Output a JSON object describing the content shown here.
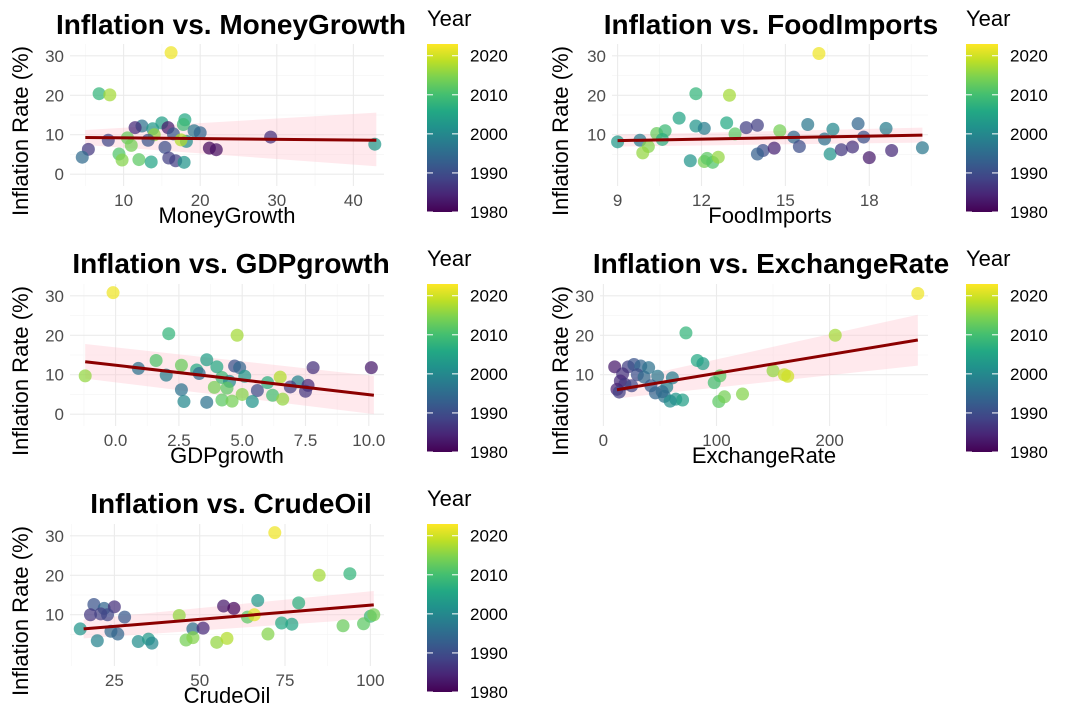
{
  "colors": {
    "point_palette": "viridis",
    "trend_line": "#8b0000",
    "confidence_band": "#ffc0cb"
  },
  "chart_data": [
    {
      "type": "scatter",
      "title": "Inflation vs. MoneyGrowth",
      "xlabel": "MoneyGrowth",
      "ylabel": "Inflation Rate (%)",
      "xlim": [
        3,
        44
      ],
      "ylim": [
        -3,
        33
      ],
      "xticks": [
        10,
        20,
        30,
        40
      ],
      "yticks": [
        0,
        10,
        20,
        30
      ],
      "legend": {
        "title": "Year",
        "ticks": [
          1980,
          1990,
          2000,
          2010,
          2020
        ],
        "range": [
          1980,
          2023
        ],
        "placement": "right"
      },
      "trend": {
        "x": [
          5,
          43
        ],
        "y": [
          9.3,
          8.6
        ],
        "band_low": [
          7.4,
          2.0
        ],
        "band_high": [
          11.2,
          15.6
        ]
      },
      "points": [
        [
          16.2,
          30.8,
          2022
        ],
        [
          6.8,
          20.4,
          2008
        ],
        [
          8.2,
          20.1,
          2017
        ],
        [
          18.0,
          13.8,
          2006
        ],
        [
          17.8,
          12.6,
          2009
        ],
        [
          15.0,
          13.0,
          2004
        ],
        [
          12.4,
          12.2,
          1996
        ],
        [
          11.5,
          11.8,
          1985
        ],
        [
          13.8,
          11.5,
          2003
        ],
        [
          15.8,
          11.8,
          1983
        ],
        [
          19.2,
          11.0,
          1997
        ],
        [
          20.0,
          10.5,
          1994
        ],
        [
          16.5,
          10.2,
          1992
        ],
        [
          14.0,
          10.0,
          2016
        ],
        [
          10.5,
          9.2,
          2013
        ],
        [
          8.0,
          8.6,
          1989
        ],
        [
          13.2,
          8.6,
          1991
        ],
        [
          18.2,
          8.3,
          2001
        ],
        [
          17.5,
          8.7,
          2018
        ],
        [
          29.2,
          9.4,
          1986
        ],
        [
          42.8,
          7.6,
          2003
        ],
        [
          5.4,
          6.3,
          1987
        ],
        [
          21.2,
          6.6,
          1981
        ],
        [
          22.1,
          6.2,
          1982
        ],
        [
          11.0,
          7.3,
          2014
        ],
        [
          15.4,
          6.8,
          1990
        ],
        [
          4.6,
          4.3,
          1995
        ],
        [
          9.4,
          5.1,
          2011
        ],
        [
          9.8,
          3.6,
          2015
        ],
        [
          12.0,
          3.7,
          2012
        ],
        [
          13.6,
          3.1,
          2005
        ],
        [
          15.9,
          4.1,
          1988
        ],
        [
          16.8,
          3.4,
          1988
        ],
        [
          17.9,
          3.0,
          2002
        ]
      ]
    },
    {
      "type": "scatter",
      "title": "Inflation vs. FoodImports",
      "xlabel": "FoodImports",
      "ylabel": "Inflation Rate (%)",
      "xlim": [
        8.8,
        20.1
      ],
      "ylim": [
        -3,
        33
      ],
      "xticks": [
        9,
        12,
        15,
        18
      ],
      "yticks": [
        10,
        20,
        30
      ],
      "legend": {
        "title": "Year",
        "ticks": [
          1980,
          1990,
          2000,
          2010,
          2020
        ],
        "range": [
          1980,
          2023
        ],
        "placement": "right"
      },
      "trend": {
        "x": [
          9,
          19.9
        ],
        "y": [
          8.5,
          9.9
        ],
        "band_low": [
          7.0,
          8.0
        ],
        "band_high": [
          10.0,
          11.8
        ]
      },
      "points": [
        [
          16.2,
          30.6,
          2022
        ],
        [
          11.8,
          20.4,
          2008
        ],
        [
          13.0,
          20.0,
          2017
        ],
        [
          11.2,
          14.2,
          2005
        ],
        [
          12.9,
          13.0,
          2006
        ],
        [
          11.8,
          12.2,
          2002
        ],
        [
          14.0,
          12.4,
          1988
        ],
        [
          15.8,
          12.6,
          1997
        ],
        [
          17.6,
          12.8,
          1994
        ],
        [
          13.6,
          11.8,
          1988
        ],
        [
          16.7,
          11.4,
          2000
        ],
        [
          18.6,
          11.6,
          1998
        ],
        [
          12.1,
          11.6,
          1998
        ],
        [
          14.8,
          11.0,
          2014
        ],
        [
          10.4,
          10.3,
          2013
        ],
        [
          10.7,
          11.0,
          2009
        ],
        [
          13.2,
          10.2,
          2012
        ],
        [
          15.3,
          9.4,
          1995
        ],
        [
          16.4,
          8.9,
          1996
        ],
        [
          17.8,
          9.4,
          1991
        ],
        [
          9.0,
          8.2,
          2003
        ],
        [
          9.8,
          8.6,
          1998
        ],
        [
          10.1,
          7.0,
          2015
        ],
        [
          14.2,
          6.0,
          1990
        ],
        [
          14.6,
          6.6,
          1984
        ],
        [
          15.5,
          7.0,
          1990
        ],
        [
          16.6,
          5.1,
          2002
        ],
        [
          17.0,
          6.2,
          1987
        ],
        [
          17.4,
          6.9,
          1986
        ],
        [
          18.8,
          6.0,
          1985
        ],
        [
          19.9,
          6.7,
          1997
        ],
        [
          9.9,
          5.4,
          2016
        ],
        [
          11.6,
          3.4,
          2002
        ],
        [
          12.1,
          3.2,
          2014
        ],
        [
          12.4,
          3.0,
          2011
        ],
        [
          12.2,
          4.0,
          2012
        ],
        [
          12.6,
          4.3,
          2016
        ],
        [
          14.0,
          5.1,
          1993
        ],
        [
          18.0,
          4.2,
          1983
        ],
        [
          10.6,
          8.8,
          2007
        ]
      ]
    },
    {
      "type": "scatter",
      "title": "Inflation vs. GDPgrowth",
      "xlabel": "GDPgrowth",
      "ylabel": "Inflation Rate (%)",
      "xlim": [
        -1.8,
        10.6
      ],
      "ylim": [
        -3,
        33
      ],
      "xticks": [
        0.0,
        2.5,
        5.0,
        7.5,
        10.0
      ],
      "yticks": [
        0,
        10,
        20,
        30
      ],
      "legend": {
        "title": "Year",
        "ticks": [
          1980,
          1990,
          2000,
          2010,
          2020
        ],
        "range": [
          1980,
          2023
        ],
        "placement": "right"
      },
      "trend": {
        "x": [
          -1.2,
          10.2
        ],
        "y": [
          13.3,
          4.8
        ],
        "band_low": [
          9.0,
          0.0
        ],
        "band_high": [
          17.8,
          9.7
        ]
      },
      "points": [
        [
          -0.1,
          30.8,
          2022
        ],
        [
          2.1,
          20.4,
          2008
        ],
        [
          4.8,
          20.0,
          2017
        ],
        [
          -1.2,
          9.7,
          2016
        ],
        [
          0.9,
          11.6,
          1996
        ],
        [
          1.6,
          13.6,
          2011
        ],
        [
          2.6,
          12.4,
          2013
        ],
        [
          3.2,
          11.2,
          2006
        ],
        [
          3.6,
          13.8,
          2004
        ],
        [
          4.0,
          12.0,
          2006
        ],
        [
          4.7,
          12.2,
          1991
        ],
        [
          4.9,
          11.8,
          1994
        ],
        [
          2.0,
          9.9,
          1998
        ],
        [
          3.3,
          10.3,
          1995
        ],
        [
          4.2,
          9.3,
          2009
        ],
        [
          4.5,
          8.3,
          2000
        ],
        [
          5.1,
          9.6,
          2003
        ],
        [
          6.0,
          8.0,
          2007
        ],
        [
          6.5,
          9.4,
          2018
        ],
        [
          7.2,
          8.2,
          1999
        ],
        [
          7.8,
          11.8,
          1986
        ],
        [
          10.1,
          11.8,
          1983
        ],
        [
          2.6,
          6.2,
          1996
        ],
        [
          3.9,
          6.8,
          2014
        ],
        [
          4.4,
          6.6,
          2012
        ],
        [
          5.6,
          6.0,
          1990
        ],
        [
          6.9,
          6.9,
          1988
        ],
        [
          7.6,
          7.3,
          1985
        ],
        [
          5.0,
          5.0,
          2015
        ],
        [
          6.2,
          4.8,
          2010
        ],
        [
          2.7,
          3.2,
          2000
        ],
        [
          3.6,
          3.0,
          1996
        ],
        [
          4.2,
          3.6,
          2012
        ],
        [
          4.6,
          3.3,
          2014
        ],
        [
          5.4,
          3.2,
          2002
        ],
        [
          6.6,
          3.8,
          2016
        ],
        [
          7.5,
          5.8,
          1987
        ]
      ]
    },
    {
      "type": "scatter",
      "title": "Inflation vs. ExchangeRate",
      "xlabel": "ExchangeRate",
      "ylabel": "Inflation Rate (%)",
      "xlim": [
        -3,
        287
      ],
      "ylim": [
        -3,
        33
      ],
      "xticks": [
        0,
        100,
        200
      ],
      "yticks": [
        10,
        20,
        30
      ],
      "legend": {
        "title": "Year",
        "ticks": [
          1980,
          1990,
          2000,
          2010,
          2020
        ],
        "range": [
          1980,
          2023
        ],
        "placement": "right"
      },
      "trend": {
        "x": [
          12,
          278
        ],
        "y": [
          6.2,
          18.8
        ],
        "band_low": [
          4.0,
          12.3
        ],
        "band_high": [
          8.3,
          25.2
        ]
      },
      "points": [
        [
          278,
          30.6,
          2022
        ],
        [
          205,
          20.0,
          2017
        ],
        [
          73,
          20.6,
          2008
        ],
        [
          10,
          12.0,
          1983
        ],
        [
          22,
          12.0,
          1988
        ],
        [
          27,
          12.6,
          1991
        ],
        [
          33,
          12.2,
          1994
        ],
        [
          40,
          11.8,
          1996
        ],
        [
          83,
          13.6,
          2006
        ],
        [
          88,
          12.8,
          2004
        ],
        [
          17,
          10.2,
          1986
        ],
        [
          30,
          10.0,
          1990
        ],
        [
          36,
          9.4,
          1995
        ],
        [
          48,
          9.6,
          1997
        ],
        [
          61,
          9.2,
          1998
        ],
        [
          103,
          9.7,
          2012
        ],
        [
          15,
          8.4,
          1985
        ],
        [
          19,
          7.6,
          1987
        ],
        [
          25,
          7.2,
          1989
        ],
        [
          42,
          7.2,
          1993
        ],
        [
          56,
          6.9,
          1999
        ],
        [
          98,
          8.0,
          2010
        ],
        [
          12,
          6.3,
          1984
        ],
        [
          14,
          5.6,
          1988
        ],
        [
          46,
          5.4,
          1994
        ],
        [
          54,
          4.5,
          1996
        ],
        [
          64,
          3.8,
          2002
        ],
        [
          70,
          3.6,
          2004
        ],
        [
          102,
          3.2,
          2012
        ],
        [
          107,
          4.4,
          2014
        ],
        [
          123,
          5.1,
          2015
        ],
        [
          150,
          11.0,
          2016
        ],
        [
          160,
          10.0,
          2019
        ],
        [
          163,
          9.6,
          2020
        ],
        [
          59,
          3.3,
          2001
        ],
        [
          52,
          5.7,
          1995
        ]
      ]
    },
    {
      "type": "scatter",
      "title": "Inflation vs. CrudeOil",
      "xlabel": "CrudeOil",
      "ylabel": "Inflation Rate (%)",
      "xlim": [
        12,
        104
      ],
      "ylim": [
        -3,
        33
      ],
      "xticks": [
        25,
        50,
        75,
        100
      ],
      "yticks": [
        10,
        20,
        30
      ],
      "legend": {
        "title": "Year",
        "ticks": [
          1980,
          1990,
          2000,
          2010,
          2020
        ],
        "range": [
          1980,
          2023
        ],
        "placement": "right"
      },
      "trend": {
        "x": [
          16,
          101
        ],
        "y": [
          6.4,
          12.5
        ],
        "band_low": [
          4.0,
          9.0
        ],
        "band_high": [
          8.8,
          16.0
        ]
      },
      "points": [
        [
          72,
          30.8,
          2022
        ],
        [
          85,
          20.0,
          2017
        ],
        [
          94,
          20.4,
          2008
        ],
        [
          19,
          12.6,
          1991
        ],
        [
          22,
          11.6,
          1994
        ],
        [
          25,
          12.0,
          1986
        ],
        [
          57,
          12.2,
          1983
        ],
        [
          60,
          11.6,
          1981
        ],
        [
          67,
          13.6,
          2003
        ],
        [
          79,
          13.0,
          2007
        ],
        [
          18,
          10.0,
          1987
        ],
        [
          21,
          10.2,
          1988
        ],
        [
          23,
          10.0,
          1989
        ],
        [
          28,
          9.4,
          1992
        ],
        [
          44,
          9.8,
          2016
        ],
        [
          64,
          9.4,
          2012
        ],
        [
          66,
          10.0,
          2021
        ],
        [
          100,
          9.6,
          2009
        ],
        [
          101,
          10.0,
          2014
        ],
        [
          15,
          6.4,
          2002
        ],
        [
          24,
          5.8,
          1995
        ],
        [
          26,
          5.1,
          1994
        ],
        [
          48,
          6.4,
          1996
        ],
        [
          51,
          6.6,
          1985
        ],
        [
          70,
          5.1,
          2015
        ],
        [
          74,
          7.9,
          2006
        ],
        [
          77,
          7.6,
          2005
        ],
        [
          92,
          7.2,
          2013
        ],
        [
          98,
          7.7,
          2012
        ],
        [
          20,
          3.4,
          1999
        ],
        [
          32,
          3.2,
          2001
        ],
        [
          35,
          3.8,
          2003
        ],
        [
          46,
          3.6,
          2014
        ],
        [
          55,
          3.0,
          2016
        ],
        [
          48,
          4.2,
          2015
        ],
        [
          58,
          4.0,
          2018
        ],
        [
          36,
          2.8,
          2000
        ]
      ]
    }
  ]
}
